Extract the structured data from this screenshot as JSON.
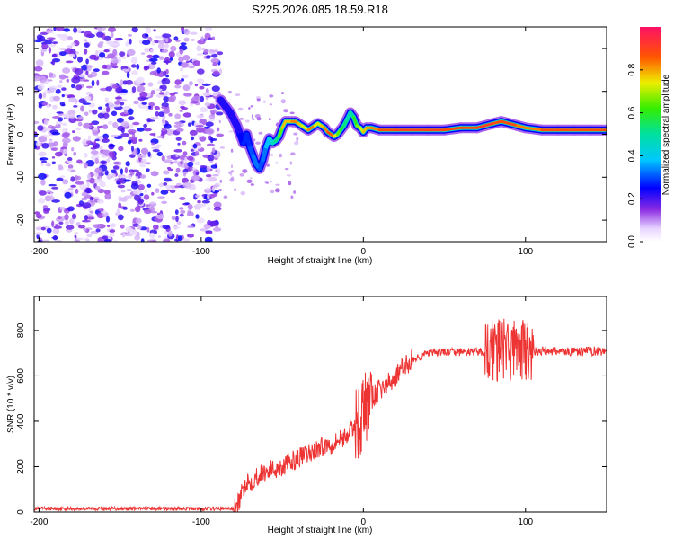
{
  "title": "S225.2026.085.18.59.R18",
  "chart_data": [
    {
      "type": "heatmap",
      "name": "spectrogram",
      "xlabel": "Height of straight line (km)",
      "ylabel": "Frequency (Hz)",
      "xlim": [
        -203,
        150
      ],
      "ylim": [
        -25,
        25
      ],
      "xticks": [
        -200,
        -100,
        0,
        100
      ],
      "yticks": [
        -20,
        -10,
        0,
        10,
        20
      ],
      "colorbar": {
        "label": "Normalized spectral amplitude",
        "range": [
          0,
          1
        ],
        "ticks": [
          0.0,
          0.2,
          0.4,
          0.6,
          0.8
        ]
      },
      "noise_region_x": [
        -203,
        -88
      ],
      "ridge": {
        "x": [
          -88,
          -85,
          -82,
          -80,
          -78,
          -76,
          -74,
          -72,
          -70,
          -68,
          -66,
          -64,
          -62,
          -60,
          -58,
          -56,
          -54,
          -52,
          -50,
          -48,
          -46,
          -44,
          -42,
          -40,
          -38,
          -36,
          -34,
          -32,
          -30,
          -28,
          -26,
          -24,
          -22,
          -20,
          -18,
          -16,
          -14,
          -12,
          -10,
          -8,
          -6,
          -4,
          -2,
          0,
          2,
          5,
          10,
          20,
          30,
          40,
          50,
          60,
          70,
          80,
          85,
          90,
          95,
          100,
          110,
          120,
          130,
          140,
          150
        ],
        "y": [
          8,
          6.5,
          5,
          3.5,
          2,
          0,
          -2,
          0,
          -3,
          -5,
          -7,
          -8,
          -6,
          -3,
          -1,
          -2,
          -1.5,
          -0.5,
          1.5,
          3,
          3,
          3,
          3,
          2.5,
          2,
          1.5,
          1,
          1.5,
          2,
          2.5,
          2,
          1.5,
          0.5,
          0,
          -0.5,
          0,
          1,
          2,
          3.5,
          5,
          4,
          2,
          1.5,
          0.5,
          1.5,
          1.5,
          1,
          1,
          1,
          1,
          1,
          1.5,
          1.5,
          2.5,
          3,
          2.5,
          2,
          1.5,
          1,
          1,
          1,
          1,
          1
        ],
        "amplitude": [
          0.25,
          0.2,
          0.25,
          0.2,
          0.25,
          0.2,
          0.3,
          0.25,
          0.3,
          0.3,
          0.35,
          0.3,
          0.3,
          0.35,
          0.4,
          0.45,
          0.5,
          0.55,
          0.75,
          0.8,
          0.75,
          0.8,
          0.85,
          0.8,
          0.75,
          0.7,
          0.8,
          0.85,
          0.8,
          0.7,
          0.75,
          0.8,
          0.85,
          0.9,
          0.8,
          0.7,
          0.6,
          0.55,
          0.5,
          0.45,
          0.55,
          0.65,
          0.7,
          0.75,
          0.8,
          0.8,
          0.85,
          0.9,
          0.9,
          0.9,
          0.9,
          0.85,
          0.9,
          0.9,
          0.85,
          0.9,
          0.85,
          0.8,
          0.85,
          0.9,
          0.85,
          0.9,
          0.85
        ]
      }
    },
    {
      "type": "line",
      "name": "snr",
      "xlabel": "Height of straight line (km)",
      "ylabel": "SNR (10 * v/v)",
      "xlim": [
        -203,
        150
      ],
      "ylim": [
        0,
        950
      ],
      "xticks": [
        -200,
        -100,
        0,
        100
      ],
      "yticks": [
        0,
        200,
        400,
        600,
        800
      ],
      "color": "#ee3333",
      "series": [
        {
          "name": "SNR",
          "x": [
            -203,
            -180,
            -160,
            -140,
            -120,
            -100,
            -90,
            -80,
            -78,
            -76,
            -74,
            -72,
            -70,
            -65,
            -60,
            -55,
            -50,
            -45,
            -40,
            -35,
            -30,
            -25,
            -20,
            -15,
            -10,
            -8,
            -5,
            -3,
            -1,
            0,
            1,
            2,
            3,
            5,
            8,
            10,
            15,
            20,
            25,
            30,
            40,
            50,
            60,
            70,
            80,
            85,
            90,
            95,
            98,
            100,
            102,
            105,
            110,
            120,
            130,
            140,
            150
          ],
          "y": [
            15,
            15,
            15,
            15,
            15,
            15,
            15,
            15,
            20,
            60,
            100,
            140,
            130,
            160,
            180,
            190,
            200,
            220,
            240,
            250,
            270,
            290,
            300,
            320,
            340,
            360,
            380,
            400,
            420,
            440,
            460,
            470,
            480,
            500,
            520,
            540,
            560,
            600,
            640,
            670,
            700,
            705,
            705,
            705,
            710,
            715,
            710,
            720,
            720,
            700,
            700,
            705,
            710,
            710,
            705,
            710,
            710
          ]
        }
      ]
    }
  ]
}
